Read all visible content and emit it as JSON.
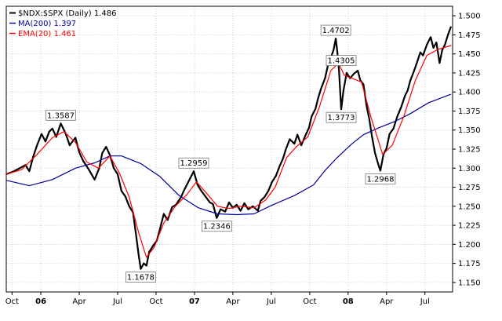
{
  "chart_data": {
    "type": "line",
    "x_axis": {
      "ticks": [
        {
          "label": "Oct",
          "t": 0.15,
          "bold": false
        },
        {
          "label": "06",
          "t": 0.9,
          "bold": true
        },
        {
          "label": "Apr",
          "t": 1.9,
          "bold": false
        },
        {
          "label": "Jul",
          "t": 2.9,
          "bold": false
        },
        {
          "label": "Oct",
          "t": 3.9,
          "bold": false
        },
        {
          "label": "07",
          "t": 4.9,
          "bold": true
        },
        {
          "label": "Apr",
          "t": 5.9,
          "bold": false
        },
        {
          "label": "Jul",
          "t": 6.9,
          "bold": false
        },
        {
          "label": "Oct",
          "t": 7.9,
          "bold": false
        },
        {
          "label": "08",
          "t": 8.9,
          "bold": true
        },
        {
          "label": "Apr",
          "t": 9.9,
          "bold": false
        },
        {
          "label": "Jul",
          "t": 10.9,
          "bold": false
        }
      ],
      "range": [
        0,
        11.62
      ]
    },
    "y_axis": {
      "ticks": [
        "1.150",
        "1.175",
        "1.200",
        "1.225",
        "1.250",
        "1.275",
        "1.300",
        "1.325",
        "1.350",
        "1.375",
        "1.400",
        "1.425",
        "1.450",
        "1.475",
        "1.500"
      ],
      "range": [
        1.1375,
        1.5125
      ],
      "grid": true,
      "position": "right"
    },
    "legend": {
      "position": "top-left",
      "entries": [
        {
          "text": "$NDX:$SPX (Daily) 1.486",
          "color": "#000000"
        },
        {
          "text": "MA(200) 1.397",
          "color": "#000099"
        },
        {
          "text": "EMA(20) 1.461",
          "color": "#ff0000"
        }
      ]
    },
    "annotations": [
      {
        "text": "1.3587",
        "t": 1.42,
        "y": 1.3587,
        "placement": "above"
      },
      {
        "text": "1.1678",
        "t": 3.5,
        "y": 1.1678,
        "placement": "below"
      },
      {
        "text": "1.2959",
        "t": 4.88,
        "y": 1.2959,
        "placement": "above"
      },
      {
        "text": "1.2346",
        "t": 5.48,
        "y": 1.2346,
        "placement": "below"
      },
      {
        "text": "1.4702",
        "t": 8.58,
        "y": 1.4702,
        "placement": "above"
      },
      {
        "text": "1.4305",
        "t": 8.72,
        "y": 1.4305,
        "placement": "above"
      },
      {
        "text": "1.3773",
        "t": 8.72,
        "y": 1.3773,
        "placement": "below"
      },
      {
        "text": "1.2968",
        "t": 9.74,
        "y": 1.2968,
        "placement": "below"
      }
    ],
    "series": [
      {
        "name": "$NDX:$SPX (Daily)",
        "color": "#000000",
        "width": 2.2,
        "points": [
          [
            0.0,
            1.292
          ],
          [
            0.2,
            1.296
          ],
          [
            0.35,
            1.3
          ],
          [
            0.5,
            1.304
          ],
          [
            0.6,
            1.296
          ],
          [
            0.7,
            1.315
          ],
          [
            0.8,
            1.33
          ],
          [
            0.92,
            1.345
          ],
          [
            1.02,
            1.335
          ],
          [
            1.12,
            1.348
          ],
          [
            1.2,
            1.352
          ],
          [
            1.3,
            1.341
          ],
          [
            1.42,
            1.3587
          ],
          [
            1.55,
            1.345
          ],
          [
            1.65,
            1.33
          ],
          [
            1.8,
            1.34
          ],
          [
            1.9,
            1.321
          ],
          [
            2.0,
            1.31
          ],
          [
            2.15,
            1.298
          ],
          [
            2.3,
            1.285
          ],
          [
            2.42,
            1.3
          ],
          [
            2.5,
            1.32
          ],
          [
            2.6,
            1.328
          ],
          [
            2.7,
            1.317
          ],
          [
            2.8,
            1.3
          ],
          [
            2.9,
            1.292
          ],
          [
            3.0,
            1.27
          ],
          [
            3.1,
            1.263
          ],
          [
            3.2,
            1.25
          ],
          [
            3.3,
            1.242
          ],
          [
            3.38,
            1.212
          ],
          [
            3.45,
            1.185
          ],
          [
            3.5,
            1.1678
          ],
          [
            3.58,
            1.175
          ],
          [
            3.65,
            1.172
          ],
          [
            3.72,
            1.19
          ],
          [
            3.82,
            1.198
          ],
          [
            3.92,
            1.205
          ],
          [
            4.0,
            1.22
          ],
          [
            4.1,
            1.24
          ],
          [
            4.2,
            1.232
          ],
          [
            4.32,
            1.249
          ],
          [
            4.42,
            1.252
          ],
          [
            4.55,
            1.262
          ],
          [
            4.62,
            1.27
          ],
          [
            4.72,
            1.28
          ],
          [
            4.88,
            1.2959
          ],
          [
            4.98,
            1.278
          ],
          [
            5.08,
            1.27
          ],
          [
            5.2,
            1.262
          ],
          [
            5.3,
            1.255
          ],
          [
            5.38,
            1.253
          ],
          [
            5.48,
            1.2346
          ],
          [
            5.58,
            1.246
          ],
          [
            5.7,
            1.243
          ],
          [
            5.8,
            1.255
          ],
          [
            5.9,
            1.248
          ],
          [
            6.0,
            1.252
          ],
          [
            6.1,
            1.244
          ],
          [
            6.2,
            1.254
          ],
          [
            6.3,
            1.246
          ],
          [
            6.42,
            1.25
          ],
          [
            6.55,
            1.244
          ],
          [
            6.62,
            1.257
          ],
          [
            6.72,
            1.262
          ],
          [
            6.82,
            1.27
          ],
          [
            6.92,
            1.282
          ],
          [
            7.02,
            1.29
          ],
          [
            7.12,
            1.303
          ],
          [
            7.2,
            1.312
          ],
          [
            7.28,
            1.325
          ],
          [
            7.38,
            1.338
          ],
          [
            7.5,
            1.332
          ],
          [
            7.58,
            1.344
          ],
          [
            7.68,
            1.33
          ],
          [
            7.78,
            1.342
          ],
          [
            7.88,
            1.353
          ],
          [
            7.95,
            1.368
          ],
          [
            8.05,
            1.378
          ],
          [
            8.12,
            1.392
          ],
          [
            8.2,
            1.405
          ],
          [
            8.3,
            1.418
          ],
          [
            8.38,
            1.436
          ],
          [
            8.45,
            1.445
          ],
          [
            8.52,
            1.455
          ],
          [
            8.58,
            1.4702
          ],
          [
            8.62,
            1.452
          ],
          [
            8.66,
            1.43
          ],
          [
            8.72,
            1.3773
          ],
          [
            8.78,
            1.402
          ],
          [
            8.86,
            1.425
          ],
          [
            8.95,
            1.418
          ],
          [
            9.05,
            1.424
          ],
          [
            9.15,
            1.428
          ],
          [
            9.22,
            1.415
          ],
          [
            9.3,
            1.41
          ],
          [
            9.38,
            1.382
          ],
          [
            9.45,
            1.365
          ],
          [
            9.52,
            1.342
          ],
          [
            9.6,
            1.32
          ],
          [
            9.68,
            1.306
          ],
          [
            9.74,
            1.2968
          ],
          [
            9.82,
            1.318
          ],
          [
            9.9,
            1.326
          ],
          [
            9.98,
            1.345
          ],
          [
            10.08,
            1.352
          ],
          [
            10.18,
            1.368
          ],
          [
            10.28,
            1.38
          ],
          [
            10.38,
            1.395
          ],
          [
            10.45,
            1.402
          ],
          [
            10.52,
            1.415
          ],
          [
            10.62,
            1.428
          ],
          [
            10.7,
            1.44
          ],
          [
            10.78,
            1.452
          ],
          [
            10.85,
            1.448
          ],
          [
            10.95,
            1.462
          ],
          [
            11.05,
            1.472
          ],
          [
            11.12,
            1.458
          ],
          [
            11.2,
            1.465
          ],
          [
            11.28,
            1.438
          ],
          [
            11.35,
            1.455
          ],
          [
            11.42,
            1.462
          ],
          [
            11.5,
            1.475
          ],
          [
            11.58,
            1.486
          ]
        ]
      },
      {
        "name": "MA(200)",
        "color": "#000099",
        "width": 1.2,
        "points": [
          [
            0.0,
            1.284
          ],
          [
            0.6,
            1.277
          ],
          [
            1.2,
            1.285
          ],
          [
            1.8,
            1.3
          ],
          [
            2.3,
            1.307
          ],
          [
            2.7,
            1.316
          ],
          [
            3.0,
            1.316
          ],
          [
            3.5,
            1.306
          ],
          [
            4.0,
            1.289
          ],
          [
            4.5,
            1.264
          ],
          [
            5.0,
            1.248
          ],
          [
            5.5,
            1.24
          ],
          [
            6.0,
            1.239
          ],
          [
            6.45,
            1.24
          ],
          [
            6.9,
            1.251
          ],
          [
            7.5,
            1.264
          ],
          [
            8.0,
            1.278
          ],
          [
            8.3,
            1.297
          ],
          [
            8.6,
            1.313
          ],
          [
            9.0,
            1.332
          ],
          [
            9.3,
            1.344
          ],
          [
            9.7,
            1.353
          ],
          [
            10.1,
            1.361
          ],
          [
            10.5,
            1.371
          ],
          [
            11.0,
            1.386
          ],
          [
            11.58,
            1.397
          ]
        ]
      },
      {
        "name": "EMA(20)",
        "color": "#ff0000",
        "width": 1.2,
        "points": [
          [
            0.0,
            1.292
          ],
          [
            0.4,
            1.298
          ],
          [
            0.8,
            1.318
          ],
          [
            1.2,
            1.34
          ],
          [
            1.5,
            1.348
          ],
          [
            1.8,
            1.334
          ],
          [
            2.1,
            1.308
          ],
          [
            2.4,
            1.3
          ],
          [
            2.7,
            1.316
          ],
          [
            2.95,
            1.293
          ],
          [
            3.2,
            1.262
          ],
          [
            3.45,
            1.215
          ],
          [
            3.65,
            1.183
          ],
          [
            3.85,
            1.196
          ],
          [
            4.1,
            1.228
          ],
          [
            4.4,
            1.25
          ],
          [
            4.7,
            1.265
          ],
          [
            4.95,
            1.282
          ],
          [
            5.2,
            1.268
          ],
          [
            5.5,
            1.25
          ],
          [
            5.8,
            1.247
          ],
          [
            6.1,
            1.25
          ],
          [
            6.45,
            1.248
          ],
          [
            6.75,
            1.258
          ],
          [
            7.0,
            1.275
          ],
          [
            7.3,
            1.314
          ],
          [
            7.55,
            1.328
          ],
          [
            7.85,
            1.341
          ],
          [
            8.15,
            1.38
          ],
          [
            8.45,
            1.428
          ],
          [
            8.65,
            1.438
          ],
          [
            8.8,
            1.422
          ],
          [
            9.0,
            1.418
          ],
          [
            9.25,
            1.413
          ],
          [
            9.5,
            1.366
          ],
          [
            9.8,
            1.318
          ],
          [
            10.05,
            1.33
          ],
          [
            10.35,
            1.368
          ],
          [
            10.65,
            1.415
          ],
          [
            10.95,
            1.448
          ],
          [
            11.25,
            1.456
          ],
          [
            11.58,
            1.461
          ]
        ]
      }
    ]
  }
}
